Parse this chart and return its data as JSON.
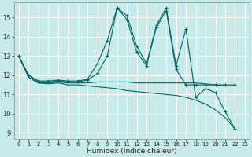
{
  "xlabel": "Humidex (Indice chaleur)",
  "bg_color": "#c8eae8",
  "grid_color": "#ffffff",
  "line_color": "#006666",
  "xlim": [
    -0.5,
    23.5
  ],
  "ylim": [
    8.7,
    15.8
  ],
  "yticks": [
    9,
    10,
    11,
    12,
    13,
    14,
    15
  ],
  "xticks": [
    0,
    1,
    2,
    3,
    4,
    5,
    6,
    7,
    8,
    9,
    10,
    11,
    12,
    13,
    14,
    15,
    16,
    17,
    18,
    19,
    20,
    21,
    22,
    23
  ],
  "lines": [
    {
      "x": [
        0,
        1,
        2,
        3,
        4,
        5,
        6,
        7,
        8,
        9,
        10,
        11,
        12,
        13,
        14,
        15,
        16,
        17,
        18,
        19,
        20,
        21,
        22
      ],
      "y": [
        13.0,
        12.0,
        11.7,
        11.7,
        11.75,
        11.7,
        11.7,
        11.8,
        12.6,
        13.8,
        15.5,
        15.1,
        13.5,
        12.6,
        14.6,
        15.5,
        12.5,
        14.4,
        10.85,
        11.3,
        11.1,
        10.1,
        9.2
      ],
      "marker": true
    },
    {
      "x": [
        0,
        1,
        2,
        3,
        4,
        5,
        6,
        7,
        8,
        9,
        10,
        11,
        12,
        13,
        14,
        15,
        16,
        17,
        18,
        19,
        20,
        21,
        22
      ],
      "y": [
        13.0,
        12.0,
        11.65,
        11.65,
        11.7,
        11.65,
        11.65,
        11.75,
        12.1,
        13.0,
        15.5,
        14.9,
        13.2,
        12.5,
        14.5,
        15.35,
        12.3,
        11.5,
        11.5,
        11.5,
        11.5,
        11.5,
        11.5
      ],
      "marker": true
    },
    {
      "x": [
        0,
        1,
        2,
        3,
        4,
        5,
        6,
        7,
        8,
        9,
        10,
        11,
        12,
        13,
        14,
        15,
        16,
        17,
        18,
        19,
        20,
        21,
        22
      ],
      "y": [
        13.0,
        11.9,
        11.6,
        11.6,
        11.65,
        11.6,
        11.6,
        11.6,
        11.65,
        11.65,
        11.65,
        11.65,
        11.6,
        11.6,
        11.6,
        11.6,
        11.6,
        11.6,
        11.6,
        11.55,
        11.5,
        11.45,
        11.45
      ],
      "marker": false
    },
    {
      "x": [
        0,
        1,
        2,
        3,
        4,
        5,
        6,
        7,
        8,
        9,
        10,
        11,
        12,
        13,
        14,
        15,
        16,
        17,
        18,
        19,
        20,
        21,
        22
      ],
      "y": [
        13.0,
        11.9,
        11.6,
        11.55,
        11.6,
        11.5,
        11.5,
        11.45,
        11.4,
        11.35,
        11.3,
        11.2,
        11.15,
        11.1,
        11.05,
        11.0,
        10.95,
        10.85,
        10.7,
        10.5,
        10.2,
        9.8,
        9.2
      ],
      "marker": false
    }
  ]
}
